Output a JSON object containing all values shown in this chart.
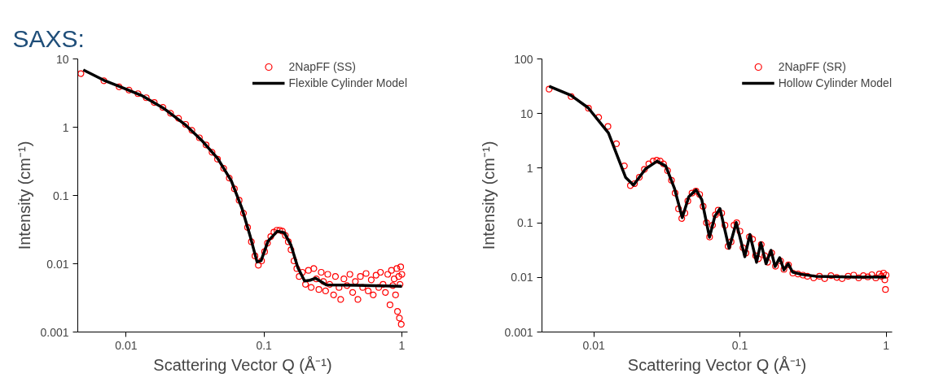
{
  "chart_data": [
    {
      "type": "scatter",
      "title": "SAXS:",
      "xlabel": "Scattering Vector Q (Å⁻¹)",
      "ylabel": "Intensity (cm⁻¹)",
      "log": "xy",
      "grid": false,
      "legend": "top right",
      "xlim": [
        0.00446,
        1.1
      ],
      "ylim": [
        0.001,
        10
      ],
      "xticks": [
        0.01,
        0.1,
        1
      ],
      "yticks": [
        0.001,
        0.01,
        0.1,
        1,
        10
      ],
      "series": [
        {
          "name": "2NapFF (SS)",
          "marker": "circle",
          "color": "#ff0000",
          "x": [
            0.0047,
            0.0069,
            0.0089,
            0.0105,
            0.0122,
            0.014,
            0.016,
            0.0185,
            0.021,
            0.024,
            0.027,
            0.03,
            0.034,
            0.038,
            0.042,
            0.046,
            0.051,
            0.056,
            0.061,
            0.066,
            0.071,
            0.076,
            0.081,
            0.086,
            0.091,
            0.096,
            0.101,
            0.106,
            0.112,
            0.118,
            0.124,
            0.13,
            0.136,
            0.143,
            0.15,
            0.157,
            0.165,
            0.173,
            0.18,
            0.19,
            0.2,
            0.21,
            0.22,
            0.23,
            0.24,
            0.25,
            0.26,
            0.27,
            0.28,
            0.29,
            0.3,
            0.32,
            0.33,
            0.35,
            0.36,
            0.38,
            0.4,
            0.42,
            0.44,
            0.46,
            0.48,
            0.5,
            0.52,
            0.55,
            0.57,
            0.6,
            0.62,
            0.65,
            0.68,
            0.7,
            0.73,
            0.76,
            0.79,
            0.82,
            0.84,
            0.86,
            0.88,
            0.9,
            0.92,
            0.93,
            0.95,
            0.96,
            0.97,
            0.98,
            0.99,
            1.0
          ],
          "values": [
            6.1,
            4.8,
            3.9,
            3.5,
            3.1,
            2.7,
            2.3,
            1.95,
            1.6,
            1.35,
            1.1,
            0.9,
            0.7,
            0.55,
            0.43,
            0.34,
            0.25,
            0.18,
            0.125,
            0.085,
            0.055,
            0.034,
            0.021,
            0.013,
            0.0095,
            0.011,
            0.015,
            0.02,
            0.025,
            0.029,
            0.031,
            0.031,
            0.03,
            0.026,
            0.021,
            0.016,
            0.011,
            0.0085,
            0.0065,
            0.0075,
            0.005,
            0.008,
            0.0045,
            0.0085,
            0.006,
            0.0042,
            0.0075,
            0.0055,
            0.004,
            0.007,
            0.005,
            0.0035,
            0.0065,
            0.0045,
            0.003,
            0.006,
            0.0048,
            0.007,
            0.0038,
            0.0055,
            0.003,
            0.0065,
            0.0045,
            0.0072,
            0.004,
            0.0058,
            0.0035,
            0.0068,
            0.0045,
            0.0075,
            0.005,
            0.0038,
            0.007,
            0.0025,
            0.008,
            0.0048,
            0.006,
            0.0035,
            0.0085,
            0.002,
            0.0065,
            0.0016,
            0.005,
            0.009,
            0.0013,
            0.007
          ]
        },
        {
          "name": "Flexible Cylinder Model",
          "type": "line",
          "color": "#000000",
          "x": [
            0.00489,
            0.00686,
            0.0088,
            0.0129,
            0.0186,
            0.0268,
            0.0352,
            0.0461,
            0.0579,
            0.0694,
            0.0796,
            0.0891,
            0.0953,
            0.107,
            0.125,
            0.14,
            0.157,
            0.176,
            0.197,
            0.216,
            0.236,
            0.283,
            0.467,
            1.0
          ],
          "values": [
            6.9,
            4.9,
            4.0,
            2.93,
            1.91,
            1.09,
            0.646,
            0.35,
            0.164,
            0.0638,
            0.0248,
            0.0106,
            0.0111,
            0.0215,
            0.03,
            0.0286,
            0.0187,
            0.0088,
            0.00558,
            0.00574,
            0.00614,
            0.00489,
            0.00484,
            0.00467
          ]
        }
      ]
    },
    {
      "type": "scatter",
      "xlabel": "Scattering Vector Q (Å⁻¹)",
      "ylabel": "Intensity (cm⁻¹)",
      "log": "xy",
      "grid": false,
      "legend": "top right",
      "xlim": [
        0.00442,
        1.1
      ],
      "ylim": [
        0.001,
        100
      ],
      "xticks": [
        0.01,
        0.1,
        1
      ],
      "yticks": [
        0.001,
        0.01,
        0.1,
        1,
        10,
        100
      ],
      "series": [
        {
          "name": "2NapFF (SR)",
          "marker": "circle",
          "color": "#ff0000",
          "x": [
            0.00495,
            0.007,
            0.0092,
            0.0108,
            0.0125,
            0.0143,
            0.0162,
            0.0178,
            0.019,
            0.0205,
            0.0222,
            0.0238,
            0.0255,
            0.027,
            0.0285,
            0.03,
            0.032,
            0.034,
            0.036,
            0.038,
            0.04,
            0.042,
            0.044,
            0.047,
            0.05,
            0.053,
            0.056,
            0.059,
            0.062,
            0.065,
            0.068,
            0.071,
            0.075,
            0.079,
            0.083,
            0.087,
            0.091,
            0.095,
            0.1,
            0.105,
            0.11,
            0.116,
            0.122,
            0.128,
            0.134,
            0.14,
            0.148,
            0.155,
            0.165,
            0.175,
            0.19,
            0.2,
            0.215,
            0.23,
            0.25,
            0.27,
            0.29,
            0.32,
            0.35,
            0.38,
            0.42,
            0.46,
            0.5,
            0.55,
            0.6,
            0.65,
            0.7,
            0.75,
            0.8,
            0.85,
            0.9,
            0.93,
            0.96,
            0.98,
            0.99,
            1.0
          ],
          "values": [
            28,
            20.5,
            12.5,
            8.5,
            5.8,
            2.8,
            1.1,
            0.48,
            0.52,
            0.68,
            0.95,
            1.2,
            1.35,
            1.4,
            1.35,
            1.2,
            0.9,
            0.6,
            0.35,
            0.18,
            0.12,
            0.15,
            0.25,
            0.35,
            0.38,
            0.33,
            0.2,
            0.1,
            0.055,
            0.09,
            0.14,
            0.17,
            0.15,
            0.09,
            0.037,
            0.045,
            0.09,
            0.1,
            0.07,
            0.035,
            0.028,
            0.055,
            0.05,
            0.025,
            0.022,
            0.04,
            0.025,
            0.019,
            0.028,
            0.016,
            0.02,
            0.014,
            0.017,
            0.012,
            0.0115,
            0.011,
            0.0105,
            0.0098,
            0.0105,
            0.0095,
            0.0108,
            0.01,
            0.0095,
            0.0105,
            0.011,
            0.0098,
            0.0108,
            0.0102,
            0.0112,
            0.0098,
            0.0115,
            0.0105,
            0.012,
            0.009,
            0.006,
            0.011
          ]
        },
        {
          "name": "Hollow Cylinder Model",
          "type": "line",
          "color": "#000000",
          "x": [
            0.00495,
            0.00695,
            0.00914,
            0.0126,
            0.0165,
            0.0187,
            0.0226,
            0.0271,
            0.0311,
            0.0357,
            0.0403,
            0.0447,
            0.0501,
            0.0548,
            0.0619,
            0.0673,
            0.073,
            0.0843,
            0.0944,
            0.108,
            0.117,
            0.13,
            0.139,
            0.151,
            0.163,
            0.174,
            0.187,
            0.2,
            0.214,
            0.229,
            0.262,
            0.329,
            0.65,
            1.0
          ],
          "values": [
            31.6,
            21.7,
            12.8,
            4.4,
            0.68,
            0.49,
            0.97,
            1.34,
            1.09,
            0.42,
            0.124,
            0.3,
            0.4,
            0.265,
            0.0543,
            0.131,
            0.182,
            0.034,
            0.101,
            0.0239,
            0.061,
            0.0189,
            0.043,
            0.0178,
            0.0313,
            0.0158,
            0.023,
            0.0137,
            0.0178,
            0.0125,
            0.0114,
            0.0105,
            0.0101,
            0.0102
          ]
        }
      ]
    }
  ]
}
